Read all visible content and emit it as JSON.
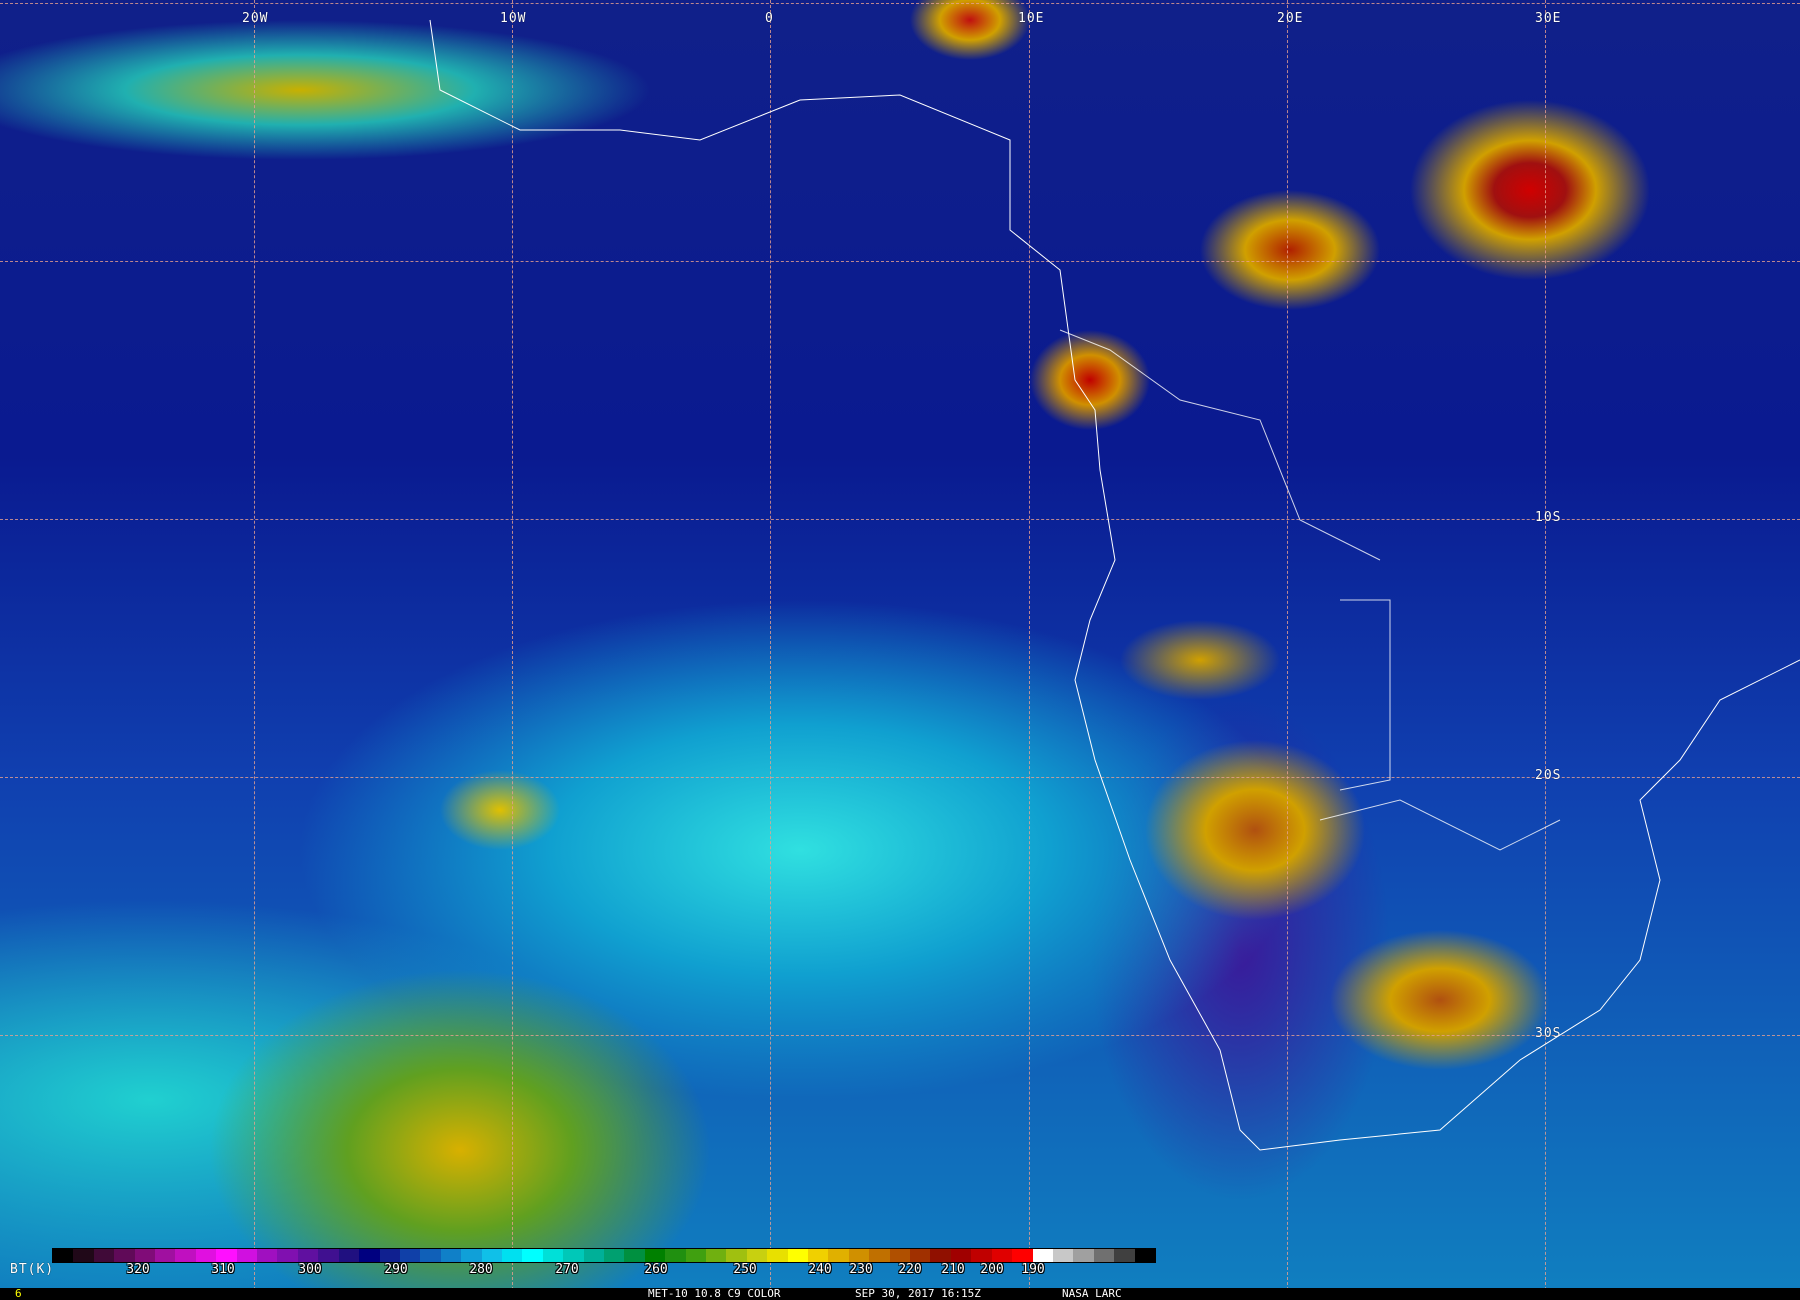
{
  "map": {
    "lon_labels": [
      "20W",
      "10W",
      "0",
      "10E",
      "20E",
      "30E"
    ],
    "lat_labels": [
      "10S",
      "20S",
      "30S"
    ]
  },
  "colorbar": {
    "unit_label": "BT(K)",
    "ticks": [
      "320",
      "310",
      "300",
      "290",
      "280",
      "270",
      "260",
      "250",
      "240",
      "230",
      "220",
      "210",
      "200",
      "190"
    ],
    "colors": [
      "#000000",
      "#200818",
      "#400a38",
      "#600a58",
      "#800c78",
      "#a010a0",
      "#c010c0",
      "#e010e0",
      "#ff10ff",
      "#d010e0",
      "#a010c0",
      "#8010b0",
      "#6010a0",
      "#401090",
      "#201080",
      "#000080",
      "#102090",
      "#1040a8",
      "#1060b8",
      "#1080c8",
      "#10a0d8",
      "#10c0e8",
      "#00e0f0",
      "#00ffff",
      "#00e0d8",
      "#00c8b8",
      "#00b098",
      "#00a070",
      "#009040",
      "#008000",
      "#209010",
      "#40a010",
      "#70b010",
      "#a0c010",
      "#c8d010",
      "#e8e000",
      "#ffff00",
      "#f0d000",
      "#e0b000",
      "#d09000",
      "#c07000",
      "#b05000",
      "#a03000",
      "#901000",
      "#a00000",
      "#c00000",
      "#e00000",
      "#ff0000",
      "#ffffff",
      "#c8c8c8",
      "#a0a0a0",
      "#707070",
      "#404040",
      "#000000"
    ]
  },
  "status": {
    "frame": "6",
    "product": "MET-10 10.8 C9 COLOR",
    "datetime": "SEP 30, 2017 16:15Z",
    "credit": "NASA LARC"
  }
}
